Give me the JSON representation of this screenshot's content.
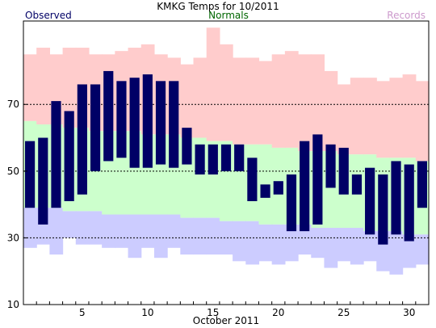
{
  "chart_data": {
    "type": "bar",
    "title": "KMKG Temps for 10/2011",
    "xlabel": "October 2011",
    "ylabel": "",
    "xlim": [
      1,
      31
    ],
    "ylim": [
      10,
      95
    ],
    "y_ticks": [
      10,
      30,
      50,
      70
    ],
    "x_ticks": [
      5,
      10,
      15,
      20,
      25,
      30
    ],
    "dashed_gridlines_y": [
      30,
      50,
      70
    ],
    "legend": {
      "observed": "Observed",
      "normals": "Normals",
      "records": "Records"
    },
    "colors": {
      "observed": "#000066",
      "normals_band": "#ccffcc",
      "records_high": "#ffcccc",
      "records_low": "#ccccff",
      "legend_observed": "#000066",
      "legend_normals": "#006600",
      "legend_records": "#cc99cc"
    },
    "days": [
      1,
      2,
      3,
      4,
      5,
      6,
      7,
      8,
      9,
      10,
      11,
      12,
      13,
      14,
      15,
      16,
      17,
      18,
      19,
      20,
      21,
      22,
      23,
      24,
      25,
      26,
      27,
      28,
      29,
      30,
      31
    ],
    "series": [
      {
        "name": "Observed",
        "key": "obs_high",
        "values": [
          59,
          60,
          71,
          68,
          76,
          76,
          80,
          77,
          78,
          79,
          77,
          77,
          63,
          58,
          58,
          58,
          58,
          54,
          46,
          47,
          49,
          59,
          61,
          58,
          57,
          49,
          51,
          49,
          53,
          52,
          53
        ]
      },
      {
        "name": "Observed",
        "key": "obs_low",
        "values": [
          39,
          34,
          39,
          41,
          43,
          50,
          53,
          54,
          51,
          51,
          52,
          51,
          52,
          49,
          49,
          50,
          50,
          41,
          42,
          43,
          32,
          32,
          34,
          45,
          43,
          43,
          31,
          28,
          31,
          29,
          39
        ]
      },
      {
        "name": "Normals",
        "key": "normal_high",
        "values": [
          65,
          64,
          64,
          63,
          63,
          62,
          62,
          62,
          62,
          61,
          61,
          61,
          60,
          60,
          59,
          59,
          58,
          58,
          58,
          57,
          57,
          56,
          56,
          56,
          55,
          55,
          55,
          54,
          54,
          54,
          53
        ]
      },
      {
        "name": "Normals",
        "key": "normal_low",
        "values": [
          39,
          39,
          39,
          38,
          38,
          38,
          37,
          37,
          37,
          37,
          37,
          37,
          36,
          36,
          36,
          35,
          35,
          35,
          34,
          34,
          34,
          34,
          33,
          33,
          33,
          33,
          32,
          32,
          32,
          31,
          31
        ]
      },
      {
        "name": "Records",
        "key": "record_high",
        "values": [
          85,
          87,
          85,
          87,
          87,
          85,
          85,
          86,
          87,
          88,
          85,
          84,
          82,
          84,
          93,
          88,
          84,
          84,
          83,
          85,
          86,
          85,
          85,
          80,
          76,
          78,
          78,
          77,
          78,
          79,
          77
        ]
      },
      {
        "name": "Records",
        "key": "record_low",
        "values": [
          27,
          28,
          25,
          30,
          28,
          28,
          27,
          27,
          24,
          27,
          24,
          27,
          25,
          25,
          25,
          25,
          23,
          22,
          23,
          22,
          23,
          25,
          24,
          21,
          23,
          22,
          23,
          20,
          19,
          21,
          22
        ]
      }
    ]
  }
}
